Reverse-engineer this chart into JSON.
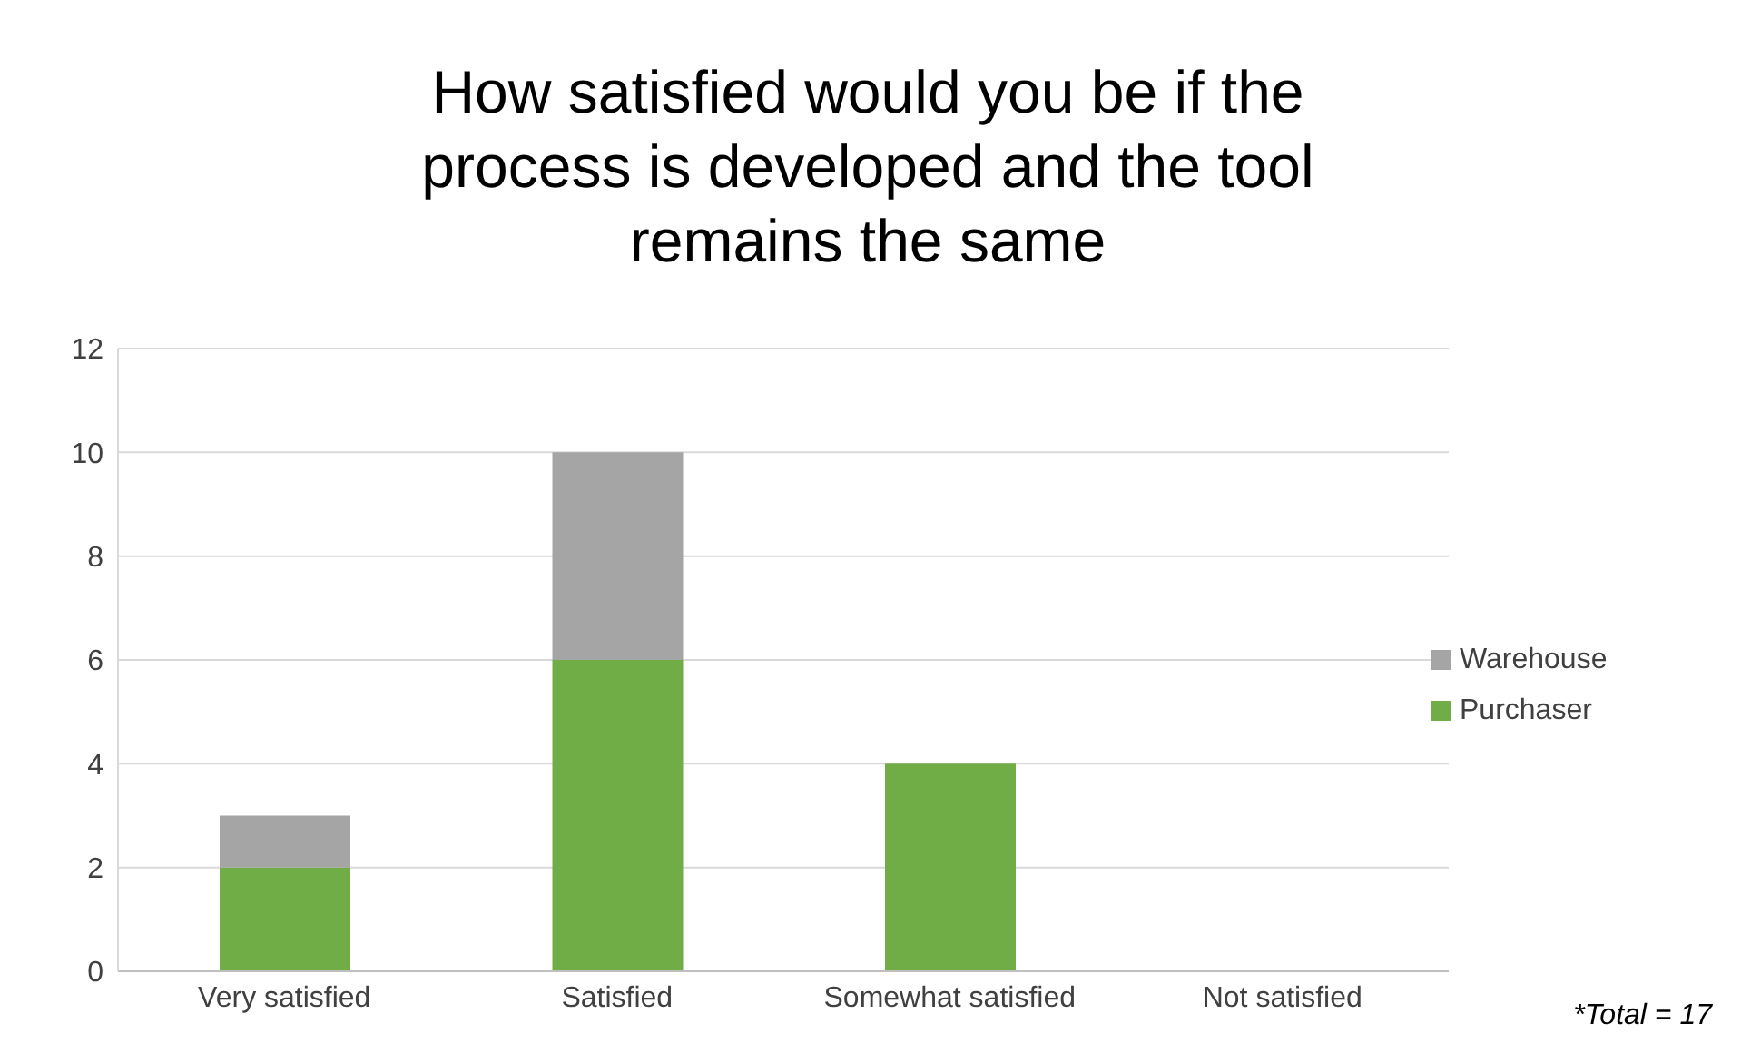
{
  "chart_data": {
    "type": "bar",
    "title": "How satisfied would you be if the process is developed and the tool remains the same",
    "categories": [
      "Very satisfied",
      "Satisfied",
      "Somewhat satisfied",
      "Not satisfied"
    ],
    "series": [
      {
        "name": "Purchaser",
        "color": "#70ad47",
        "values": [
          2,
          6,
          4,
          0
        ]
      },
      {
        "name": "Warehouse",
        "color": "#a5a5a5",
        "values": [
          1,
          4,
          0,
          0
        ]
      }
    ],
    "stacked": true,
    "ylim": [
      0,
      12
    ],
    "yticks": [
      0,
      2,
      4,
      6,
      8,
      10,
      12
    ],
    "grid": "y",
    "legend": "right",
    "annotations": [
      "*Total = 17"
    ]
  }
}
